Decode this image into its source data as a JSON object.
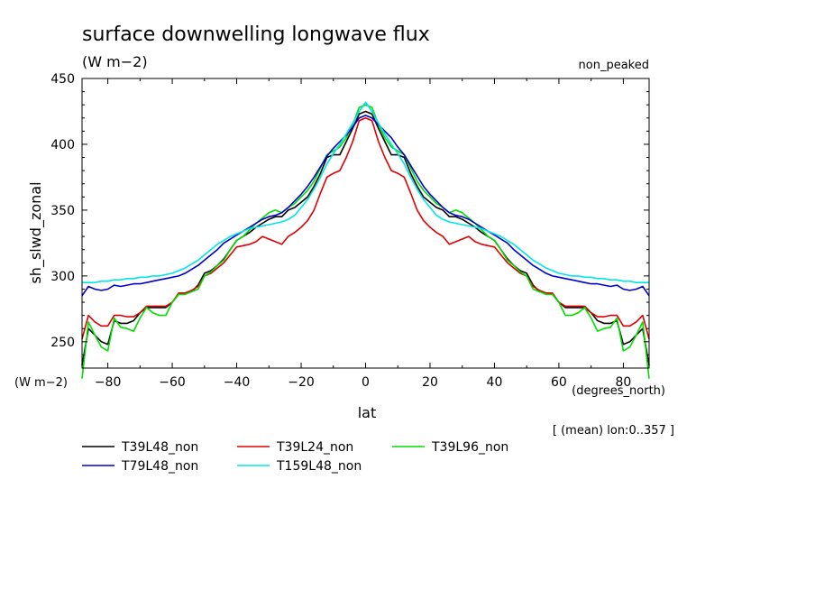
{
  "chart_data": {
    "type": "line",
    "title": "surface downwelling longwave flux",
    "units_label": "(W m−2)",
    "top_right_label": "non_peaked",
    "ylabel": "sh_slwd_zonal",
    "y_units_label": "(W m−2)",
    "xlabel": "lat",
    "x_units_label": "(degrees_north)",
    "footnote": "[ (mean) lon:0..357 ]",
    "xlim": [
      -88,
      88
    ],
    "ylim": [
      230,
      450
    ],
    "x_ticks": [
      -80,
      -60,
      -40,
      -20,
      0,
      20,
      40,
      60,
      80
    ],
    "x_tick_labels": [
      "−80",
      "−60",
      "−40",
      "−20",
      "0",
      "20",
      "40",
      "60",
      "80"
    ],
    "y_ticks": [
      250,
      300,
      350,
      400,
      450
    ],
    "y_tick_labels": [
      "250",
      "300",
      "350",
      "400",
      "450"
    ],
    "x": [
      -88,
      -86,
      -84,
      -82,
      -80,
      -78,
      -76,
      -74,
      -72,
      -70,
      -68,
      -66,
      -64,
      -62,
      -60,
      -58,
      -56,
      -54,
      -52,
      -50,
      -48,
      -46,
      -44,
      -42,
      -40,
      -38,
      -36,
      -34,
      -32,
      -30,
      -28,
      -26,
      -24,
      -22,
      -20,
      -18,
      -16,
      -14,
      -12,
      -10,
      -8,
      -6,
      -4,
      -2,
      0,
      2,
      4,
      6,
      8,
      10,
      12,
      14,
      16,
      18,
      20,
      22,
      24,
      26,
      28,
      30,
      32,
      34,
      36,
      38,
      40,
      42,
      44,
      46,
      48,
      50,
      52,
      54,
      56,
      58,
      60,
      62,
      64,
      66,
      68,
      70,
      72,
      74,
      76,
      78,
      80,
      82,
      84,
      86,
      88
    ],
    "series": [
      {
        "name": "T39L48_non",
        "color": "#000000",
        "values": [
          232,
          260,
          255,
          250,
          248,
          266,
          264,
          264,
          266,
          272,
          276,
          276,
          276,
          276,
          280,
          286,
          287,
          288,
          293,
          302,
          304,
          308,
          313,
          320,
          327,
          330,
          333,
          337,
          340,
          343,
          345,
          345,
          350,
          352,
          356,
          360,
          368,
          378,
          390,
          392,
          392,
          402,
          412,
          423,
          425,
          423,
          412,
          402,
          392,
          392,
          390,
          378,
          368,
          360,
          356,
          352,
          350,
          345,
          345,
          343,
          340,
          337,
          333,
          330,
          327,
          320,
          313,
          308,
          304,
          302,
          293,
          288,
          287,
          286,
          280,
          276,
          276,
          276,
          276,
          272,
          266,
          264,
          264,
          266,
          248,
          250,
          255,
          260,
          232
        ]
      },
      {
        "name": "T39L24_non",
        "color": "#dd0000",
        "values": [
          252,
          270,
          265,
          262,
          262,
          270,
          270,
          269,
          269,
          272,
          277,
          277,
          277,
          277,
          280,
          287,
          287,
          289,
          292,
          300,
          302,
          306,
          310,
          316,
          322,
          323,
          324,
          326,
          330,
          328,
          326,
          324,
          330,
          333,
          337,
          342,
          350,
          363,
          375,
          378,
          380,
          390,
          402,
          418,
          420,
          418,
          402,
          390,
          380,
          378,
          375,
          363,
          350,
          342,
          337,
          333,
          330,
          324,
          326,
          328,
          330,
          326,
          324,
          323,
          322,
          316,
          310,
          306,
          302,
          300,
          292,
          289,
          287,
          287,
          280,
          277,
          277,
          277,
          277,
          272,
          269,
          269,
          270,
          270,
          262,
          262,
          265,
          270,
          252
        ]
      },
      {
        "name": "T39L96_non",
        "color": "#00dd00",
        "values": [
          222,
          265,
          255,
          246,
          243,
          268,
          261,
          260,
          258,
          268,
          276,
          272,
          270,
          270,
          280,
          286,
          286,
          288,
          290,
          300,
          303,
          308,
          312,
          320,
          327,
          330,
          335,
          340,
          344,
          348,
          350,
          348,
          352,
          355,
          360,
          365,
          372,
          382,
          392,
          395,
          398,
          405,
          415,
          428,
          430,
          428,
          415,
          405,
          398,
          395,
          392,
          382,
          372,
          365,
          360,
          355,
          352,
          348,
          350,
          348,
          344,
          340,
          335,
          330,
          327,
          320,
          312,
          308,
          303,
          300,
          290,
          288,
          286,
          286,
          280,
          270,
          270,
          272,
          276,
          268,
          258,
          260,
          261,
          268,
          243,
          246,
          255,
          265,
          222
        ]
      },
      {
        "name": "T79L48_non",
        "color": "#0000cc",
        "values": [
          285,
          292,
          290,
          289,
          290,
          293,
          292,
          293,
          294,
          294,
          295,
          296,
          297,
          298,
          299,
          300,
          302,
          305,
          308,
          312,
          316,
          320,
          325,
          328,
          331,
          334,
          337,
          340,
          343,
          345,
          346,
          348,
          352,
          357,
          362,
          368,
          375,
          383,
          391,
          397,
          402,
          407,
          413,
          420,
          422,
          420,
          415,
          410,
          405,
          398,
          392,
          384,
          376,
          368,
          362,
          357,
          352,
          348,
          346,
          345,
          343,
          340,
          337,
          334,
          331,
          328,
          325,
          320,
          316,
          312,
          308,
          305,
          302,
          300,
          299,
          298,
          297,
          296,
          295,
          294,
          294,
          293,
          292,
          293,
          290,
          289,
          290,
          292,
          285
        ]
      },
      {
        "name": "T159L48_non",
        "color": "#00e5e5",
        "values": [
          295,
          295,
          295,
          296,
          296,
          297,
          297,
          298,
          298,
          299,
          299,
          300,
          300,
          301,
          302,
          304,
          306,
          309,
          312,
          316,
          320,
          324,
          327,
          330,
          332,
          334,
          336,
          337,
          338,
          339,
          340,
          341,
          343,
          346,
          352,
          358,
          366,
          375,
          385,
          393,
          400,
          408,
          416,
          425,
          432,
          425,
          416,
          408,
          400,
          393,
          385,
          375,
          366,
          358,
          352,
          346,
          343,
          341,
          340,
          339,
          338,
          337,
          336,
          334,
          332,
          330,
          327,
          324,
          320,
          316,
          312,
          309,
          306,
          304,
          302,
          301,
          300,
          300,
          299,
          299,
          298,
          298,
          297,
          297,
          296,
          296,
          295,
          295,
          295
        ]
      }
    ]
  }
}
